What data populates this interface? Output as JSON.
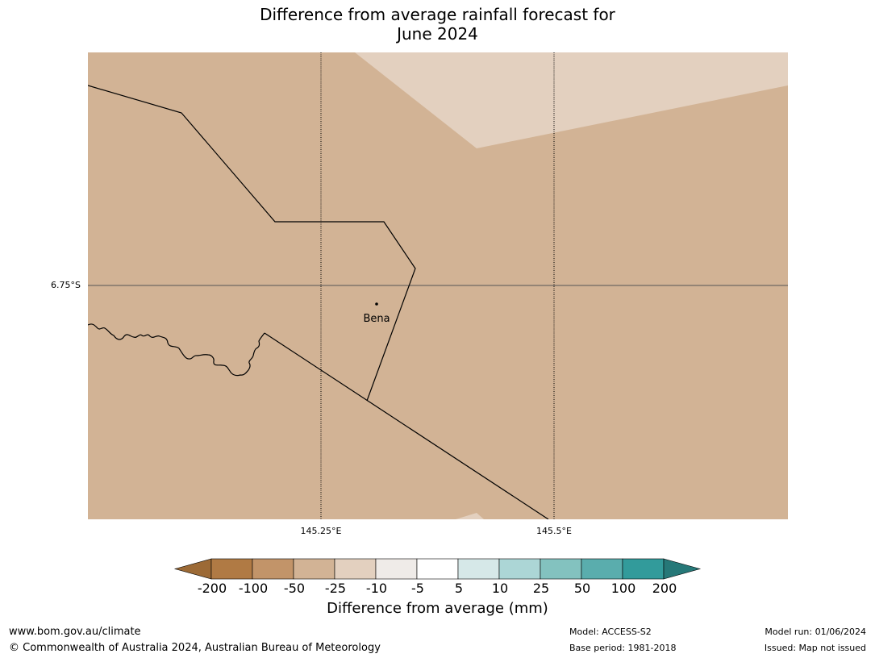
{
  "title": {
    "line1": "Difference from average rainfall forecast for",
    "line2": "June 2024"
  },
  "map": {
    "latitude_labels": [
      "6.75°S"
    ],
    "longitude_labels": [
      "145.25°E",
      "145.5°E"
    ],
    "places": [
      {
        "name": "Bena"
      }
    ],
    "fill_colors": {
      "dominant": "#d2b395",
      "light": "#e3d0bf"
    },
    "boundary_color": "#000000"
  },
  "colorbar": {
    "title": "Difference from average (mm)",
    "tick_labels": [
      "-200",
      "-100",
      "-50",
      "-25",
      "-10",
      "-5",
      "5",
      "10",
      "25",
      "50",
      "100",
      "200"
    ],
    "colors": [
      "#9c6a36",
      "#b07a44",
      "#c29469",
      "#d2b395",
      "#e3d0bf",
      "#efebe8",
      "#ffffff",
      "#d6e8e8",
      "#acd6d6",
      "#83c2bf",
      "#5aadad",
      "#329b9b",
      "#267878"
    ]
  },
  "footer": {
    "website": "www.bom.gov.au/climate",
    "copyright": "© Commonwealth of Australia 2024, Australian Bureau of Meteorology",
    "model": "Model: ACCESS-S2",
    "base_period": "Base period: 1981-2018",
    "model_run": "Model run: 01/06/2024",
    "issued": "Issued: Map not issued"
  }
}
